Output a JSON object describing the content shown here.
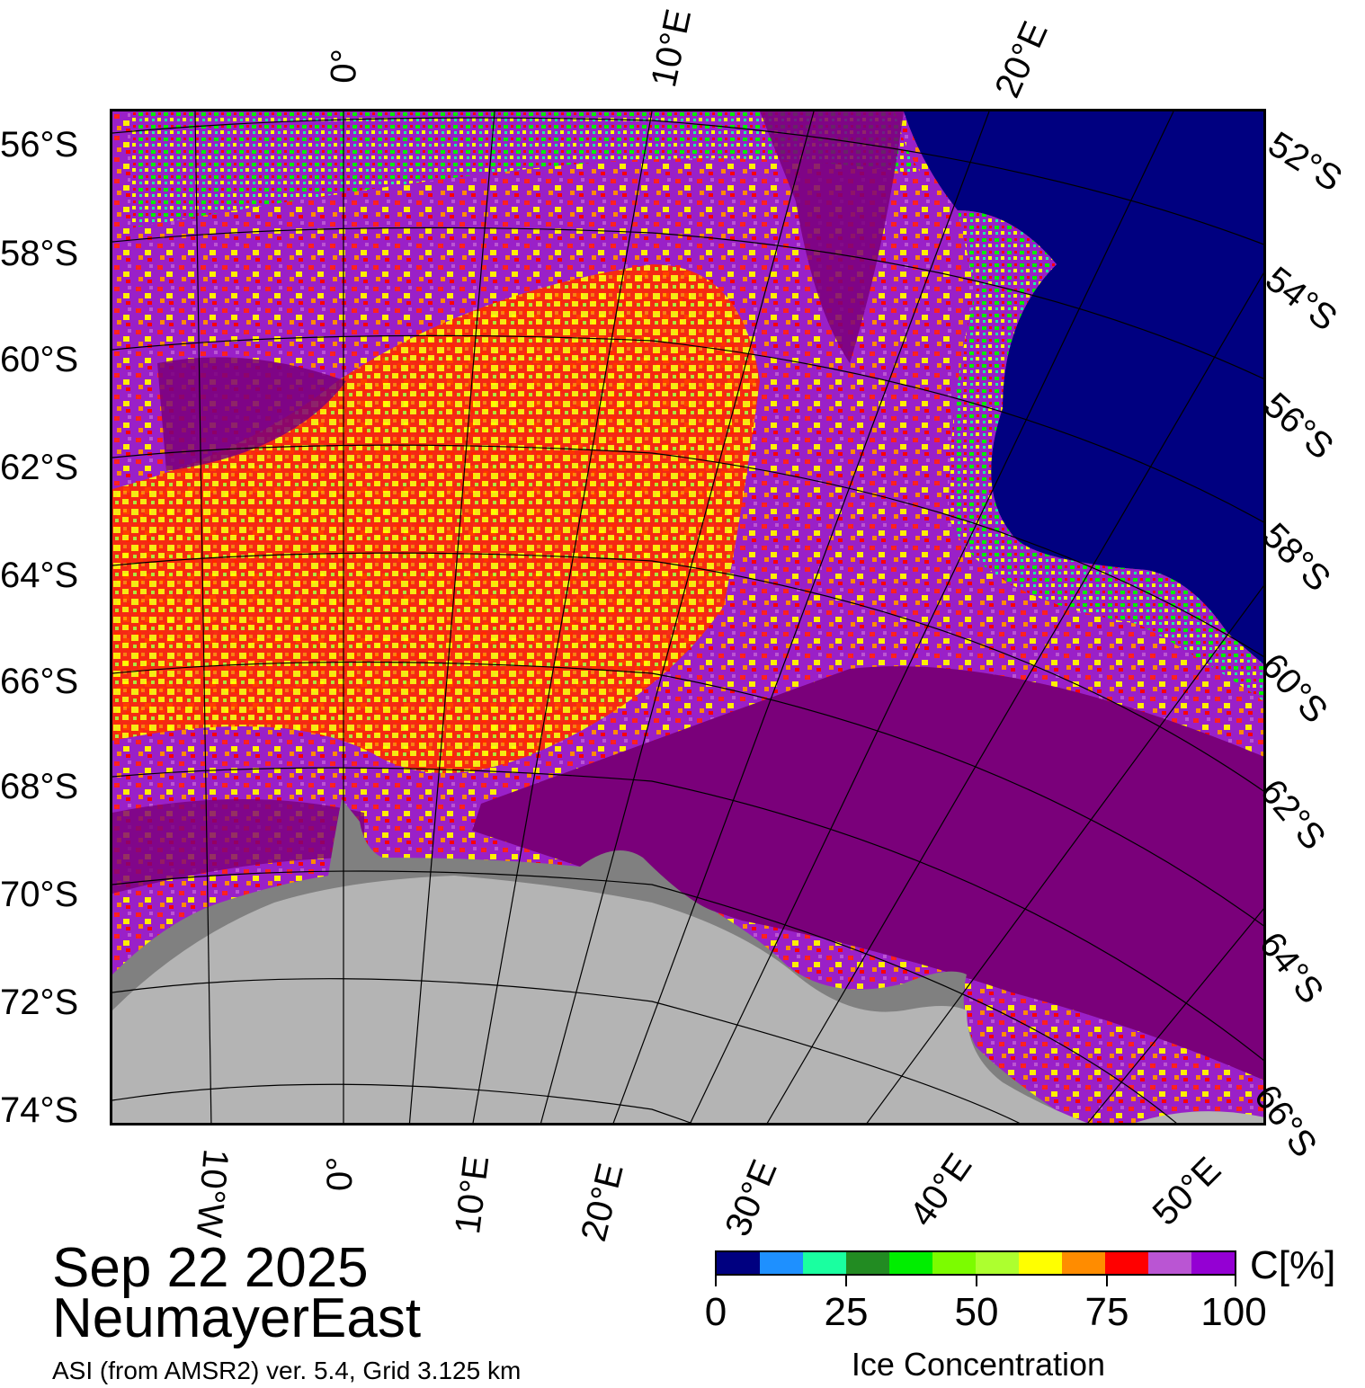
{
  "header": {
    "date": "Sep 22 2025",
    "region": "NeumayerEast",
    "product": "ASI (from AMSR2) ver. 5.4,  Grid 3.125 km"
  },
  "map": {
    "left_lat_labels": [
      "56°S",
      "58°S",
      "60°S",
      "62°S",
      "64°S",
      "66°S",
      "68°S",
      "70°S",
      "72°S",
      "74°S"
    ],
    "right_lat_labels": [
      "52°S",
      "54°S",
      "56°S",
      "58°S",
      "60°S",
      "62°S",
      "64°S",
      "66°S"
    ],
    "top_lon_labels": [
      "0°",
      "10°E",
      "20°E"
    ],
    "bottom_lon_labels": [
      "10°W",
      "0°",
      "10°E",
      "20°E",
      "30°E",
      "40°E",
      "50°E"
    ],
    "colors": {
      "open_water": "#000080",
      "land": "#b4b4b4",
      "ice_shelf": "#808080",
      "high_ice": "#7a007a",
      "mid_ice": "#9a20c8"
    }
  },
  "colorbar": {
    "title": "Ice Concentration",
    "unit": "C[%]",
    "tick_labels": [
      "0",
      "25",
      "50",
      "75",
      "100"
    ],
    "colors": [
      "#000080",
      "#1e90ff",
      "#1affa0",
      "#228b22",
      "#00ee00",
      "#7cfc00",
      "#adff2f",
      "#ffff00",
      "#ff8c00",
      "#ff0000",
      "#ba55d3",
      "#9400d3"
    ]
  }
}
